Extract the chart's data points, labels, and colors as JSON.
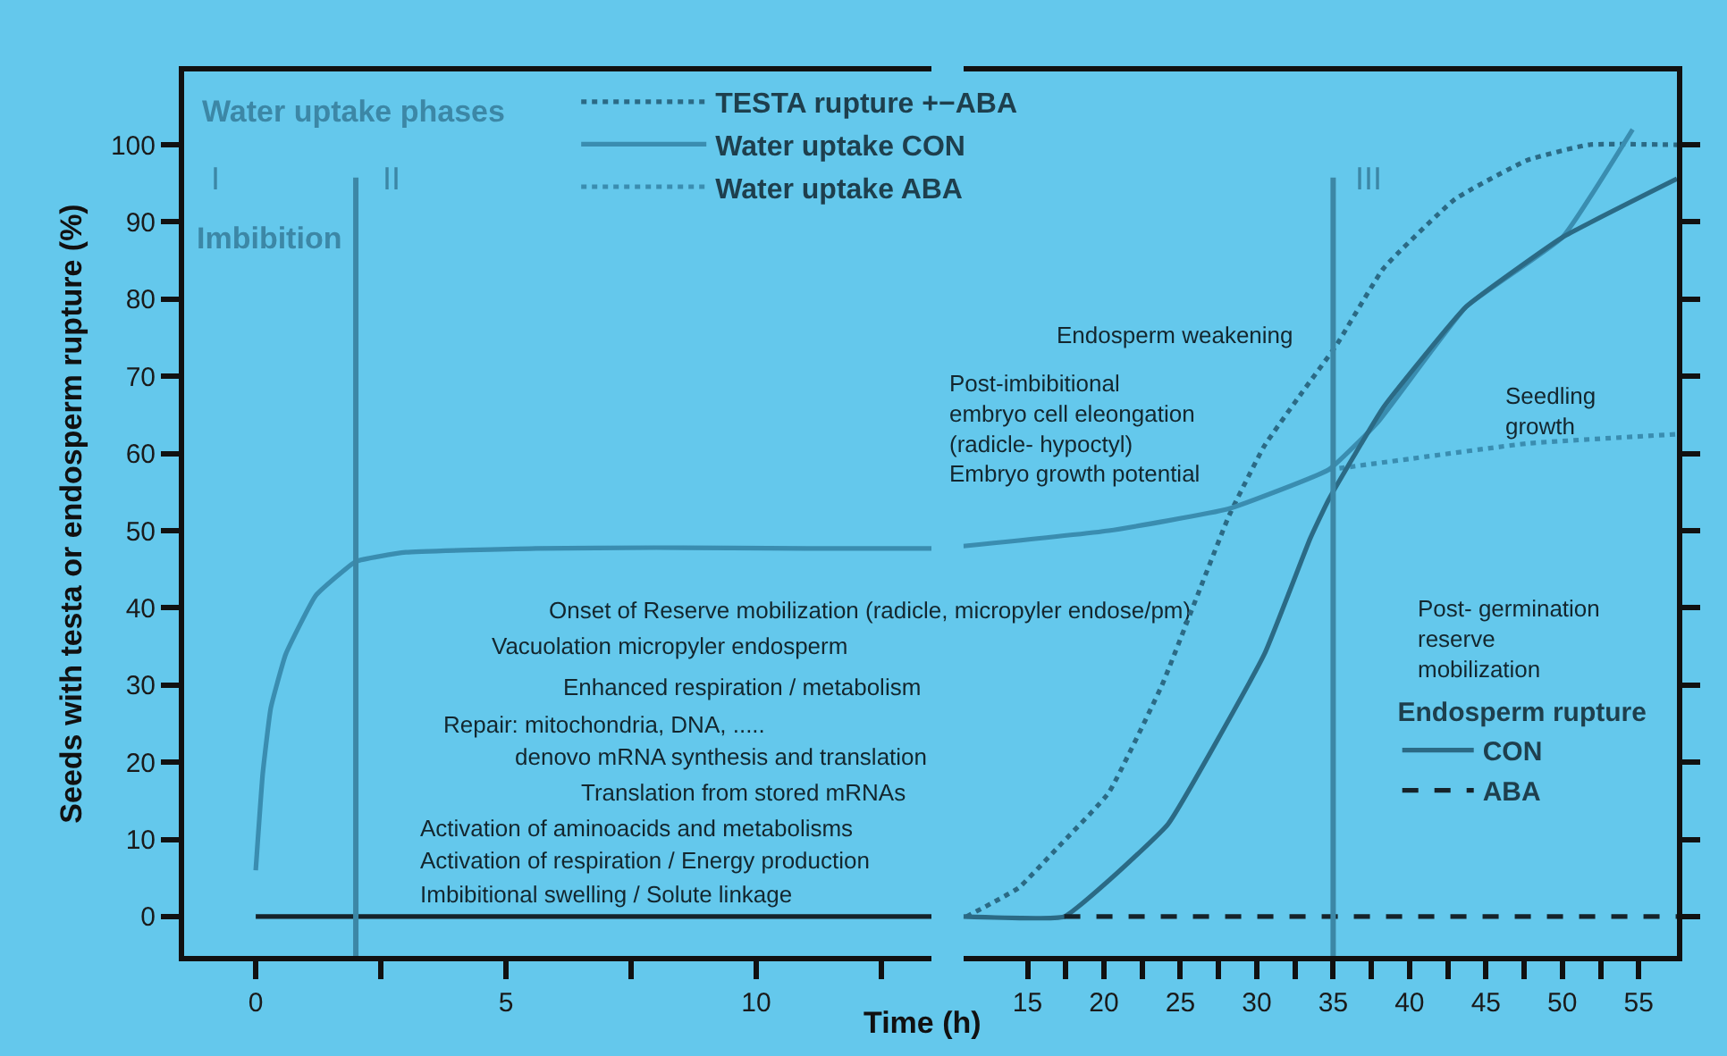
{
  "chart_data": [
    {
      "type": "line",
      "ylabel": "Seeds with testa or endosperm rupture (%)",
      "xlabel": "Time (h)",
      "xlim": [
        -1.43,
        13.5
      ],
      "xticks": [
        0,
        {
          "value": 2.5,
          "label": null
        },
        5,
        {
          "value": 7.5,
          "label": null
        },
        10,
        {
          "value": 12.5,
          "label": null
        }
      ],
      "ylim": [
        -5.1,
        109.5
      ],
      "yticks": [
        0,
        10,
        20,
        30,
        40,
        50,
        60,
        70,
        80,
        90,
        100
      ],
      "grid": false,
      "legend": false,
      "marker": "none",
      "series": [
        {
          "color": "#3a8db0",
          "x": [
            0,
            0.14,
            0.3,
            0.6,
            1.2,
            2,
            3,
            5.6,
            8,
            11,
            13.5
          ],
          "values": [
            6,
            18.5,
            27,
            34,
            41.6,
            46,
            47.2,
            47.7,
            47.8,
            47.7,
            47.7
          ]
        },
        {
          "color": "#16232a",
          "x": [
            0,
            13.5
          ],
          "values": [
            0,
            0
          ]
        }
      ],
      "ref_lines": [
        {
          "axis": "x",
          "value": 2,
          "color": "#3c87a6"
        }
      ],
      "annotations": [
        "Water uptake phases",
        "I",
        "II",
        "Imbibition",
        "Onset of Reserve mobilization (radicle, micropyler endose/pm)",
        "Vacuolation micropyler endosperm",
        "Enhanced respiration / metabolism",
        "Repair: mitochondria, DNA, .....",
        "denovo mRNA synthesis and translation",
        "Translation from stored mRNAs",
        "Activation of aminoacids and metabolisms",
        "Activation of respiration / Energy production",
        "Imbibitional swelling / Solute linkage"
      ]
    },
    {
      "type": "line",
      "legend": "top left",
      "legend_title": "Endosperm rupture",
      "tick_labels": "x",
      "xlim": [
        10.8,
        57.5
      ],
      "xticks": [
        15,
        {
          "value": 17.5,
          "label": null
        },
        20,
        {
          "value": 22.5,
          "label": null
        },
        25,
        {
          "value": 27.5,
          "label": null
        },
        30,
        {
          "value": 32.5,
          "label": null
        },
        35,
        {
          "value": 37.5,
          "label": null
        },
        40,
        {
          "value": 42.5,
          "label": null
        },
        45,
        {
          "value": 47.5,
          "label": null
        },
        50,
        {
          "value": 52.5,
          "label": null
        },
        55
      ],
      "ylim": [
        -5.1,
        109.5
      ],
      "yticks": [
        0,
        10,
        20,
        30,
        40,
        50,
        60,
        70,
        80,
        90,
        100
      ],
      "grid": false,
      "marker": "none",
      "series": [
        {
          "name": "TESTA rupture +−ABA",
          "color": "#2b6a85",
          "line_style": "dotted",
          "x": [
            11,
            14.4,
            17,
            20.3,
            23.8,
            25.8,
            28.2,
            30.5,
            33,
            35.2,
            38.3,
            43,
            47.7,
            51.7,
            57.5
          ],
          "values": [
            0,
            3.7,
            9,
            16,
            30,
            40,
            52,
            61,
            68,
            74,
            84,
            93,
            98,
            100,
            100
          ]
        },
        {
          "name": "Water uptake CON",
          "color": "#3a8db0",
          "x": [
            10.8,
            20.3,
            28.1,
            34.7,
            37.9,
            43.7,
            50,
            54.6
          ],
          "values": [
            48,
            50,
            52.8,
            57.9,
            64,
            79,
            88,
            102
          ]
        },
        {
          "name": "Water uptake ABA",
          "color": "#3a8db0",
          "line_style": "dotted",
          "x": [
            34.7,
            40,
            47.7,
            57.5
          ],
          "values": [
            57.9,
            59.3,
            61.3,
            62.5
          ]
        },
        {
          "name": "CON",
          "color": "#2b6a85",
          "x": [
            10.8,
            17.4,
            20.5,
            24.2,
            30.5,
            33.5,
            34.7,
            38.3,
            43.7,
            50,
            57.5
          ],
          "values": [
            0,
            0,
            5,
            12,
            34,
            49,
            54,
            66,
            79,
            88,
            95.6
          ]
        },
        {
          "name": "ABA",
          "color": "#16232a",
          "line_style": "dashed",
          "x": [
            17.4,
            57.5
          ],
          "values": [
            0,
            0
          ]
        }
      ],
      "ref_lines": [
        {
          "axis": "x",
          "value": 35,
          "color": "#3c87a6"
        }
      ],
      "annotations": [
        "III",
        "Endosperm weakening",
        "Post-imbibitional\nembryo cell eleongation\n(radicle- hypoctyl)\nEmbryo growth potential",
        "Seedling\ngrowth",
        "Post- germination\nreserve\nmobilization"
      ]
    }
  ]
}
